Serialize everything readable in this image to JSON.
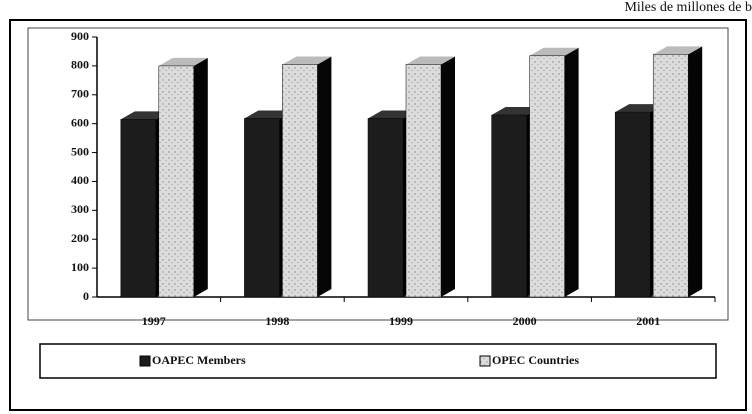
{
  "chart_data": {
    "type": "bar3d",
    "subtitle": "Miles de millones de b",
    "categories": [
      "1997",
      "1998",
      "1999",
      "2000",
      "2001"
    ],
    "series": [
      {
        "name": "OAPEC Members",
        "color": "#1c1c1c",
        "values": [
          615,
          618,
          618,
          630,
          640
        ]
      },
      {
        "name": "OPEC Countries",
        "color": "#d9d9d9",
        "values": [
          800,
          805,
          805,
          835,
          840
        ]
      }
    ],
    "ylim": [
      0,
      900
    ],
    "yticks": [
      0,
      100,
      200,
      300,
      400,
      500,
      600,
      700,
      800,
      900
    ],
    "legend": "bottom"
  }
}
